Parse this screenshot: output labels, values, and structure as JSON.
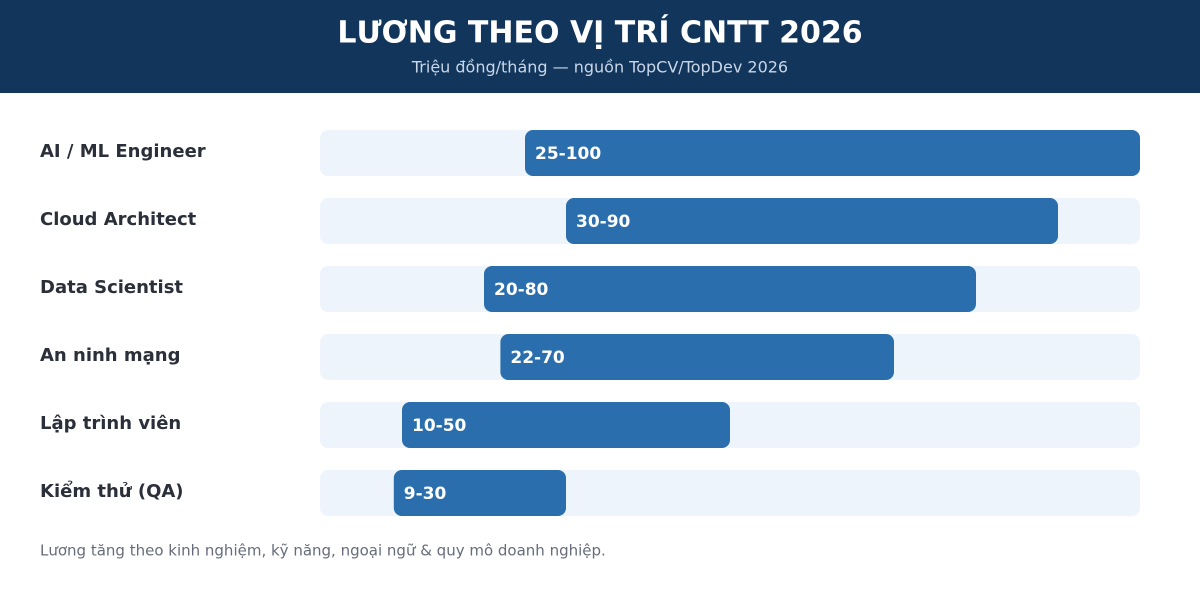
{
  "chart_data": {
    "type": "range_bar",
    "title": "LƯƠNG THEO VỊ TRÍ CNTT 2026",
    "subtitle": "Triệu đồng/tháng — nguồn TopCV/TopDev 2026",
    "categories": [
      "AI / ML Engineer",
      "Cloud Architect",
      "Data Scientist",
      "An ninh mạng",
      "Lập trình viên",
      "Kiểm thử (QA)"
    ],
    "low": [
      25,
      30,
      20,
      22,
      10,
      9
    ],
    "high": [
      100,
      90,
      80,
      70,
      50,
      30
    ],
    "value_labels": [
      "25-100",
      "30-90",
      "20-80",
      "22-70",
      "10-50",
      "9-30"
    ],
    "color": "#2a6ead",
    "track_color": "#eef4fb",
    "xlim": [
      0,
      100
    ],
    "footnote": "Lương tăng theo kinh nghiệm, kỹ năng, ngoại ngữ & quy mô doanh nghiệp."
  }
}
